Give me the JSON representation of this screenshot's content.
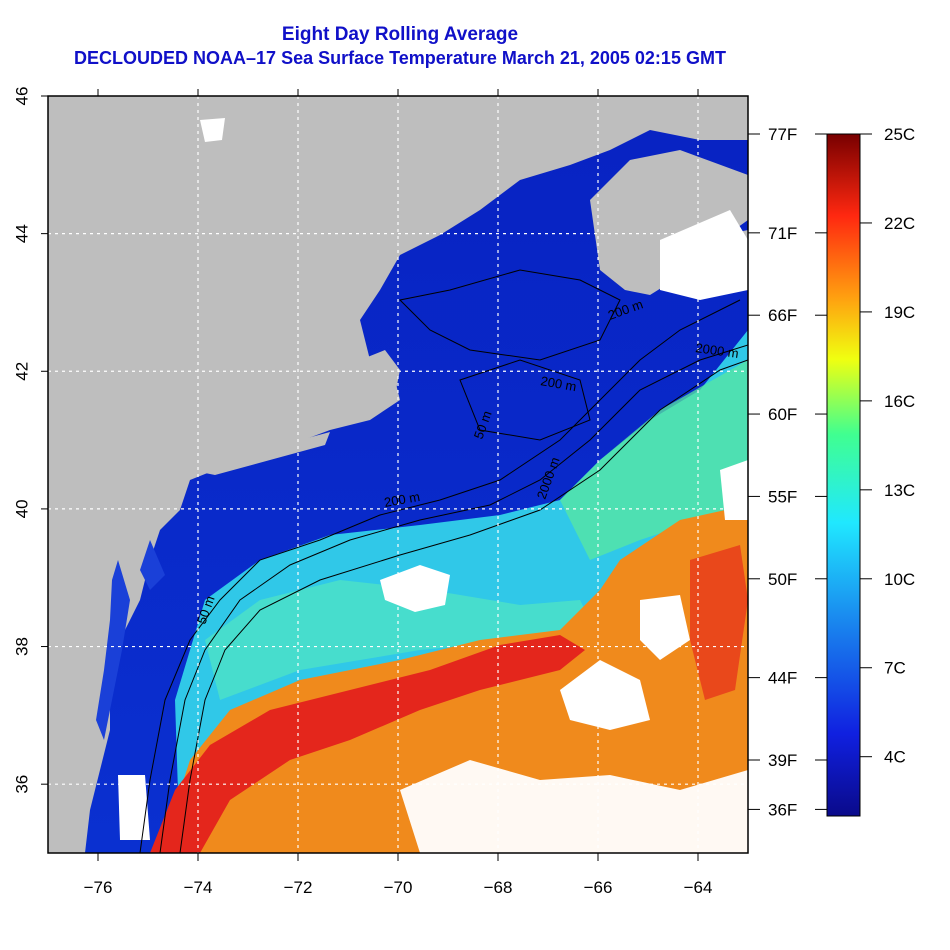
{
  "header": {
    "title_line1": "Eight Day Rolling Average",
    "title_line2": "DECLOUDED NOAA–17 Sea Surface Temperature March 21, 2005 02:15 GMT"
  },
  "map": {
    "lon_ticks": [
      "−76",
      "−74",
      "−72",
      "−70",
      "−68",
      "−66",
      "−64"
    ],
    "lon_values": [
      -76,
      -74,
      -72,
      -70,
      -68,
      -66,
      -64
    ],
    "lat_ticks": [
      "46",
      "44",
      "42",
      "40",
      "38",
      "36"
    ],
    "lat_values": [
      46,
      44,
      42,
      40,
      38,
      36
    ],
    "lon_range": [
      -77,
      -63
    ],
    "lat_range": [
      35,
      46
    ],
    "contour_labels": [
      "50 m",
      "200 m",
      "50 m",
      "200 m",
      "2000 m",
      "200 m",
      "2000 m"
    ],
    "colors": {
      "land": "#bebebe",
      "cloud": "#ffffff",
      "cold": "#0a22c8",
      "mid": "#3fd0e0",
      "warm": "#e8241a",
      "grid": "#ffffff"
    }
  },
  "colorbar": {
    "fahrenheit_labels": [
      "77F",
      "71F",
      "66F",
      "60F",
      "55F",
      "50F",
      "44F",
      "39F",
      "36F"
    ],
    "fahrenheit_values": [
      77,
      71,
      66,
      60,
      55,
      50,
      44,
      39,
      36
    ],
    "celsius_labels": [
      "25C",
      "22C",
      "19C",
      "16C",
      "13C",
      "10C",
      "7C",
      "4C"
    ],
    "celsius_values": [
      25,
      22,
      19,
      16,
      13,
      10,
      7,
      4
    ],
    "range_c": [
      2,
      25
    ]
  }
}
